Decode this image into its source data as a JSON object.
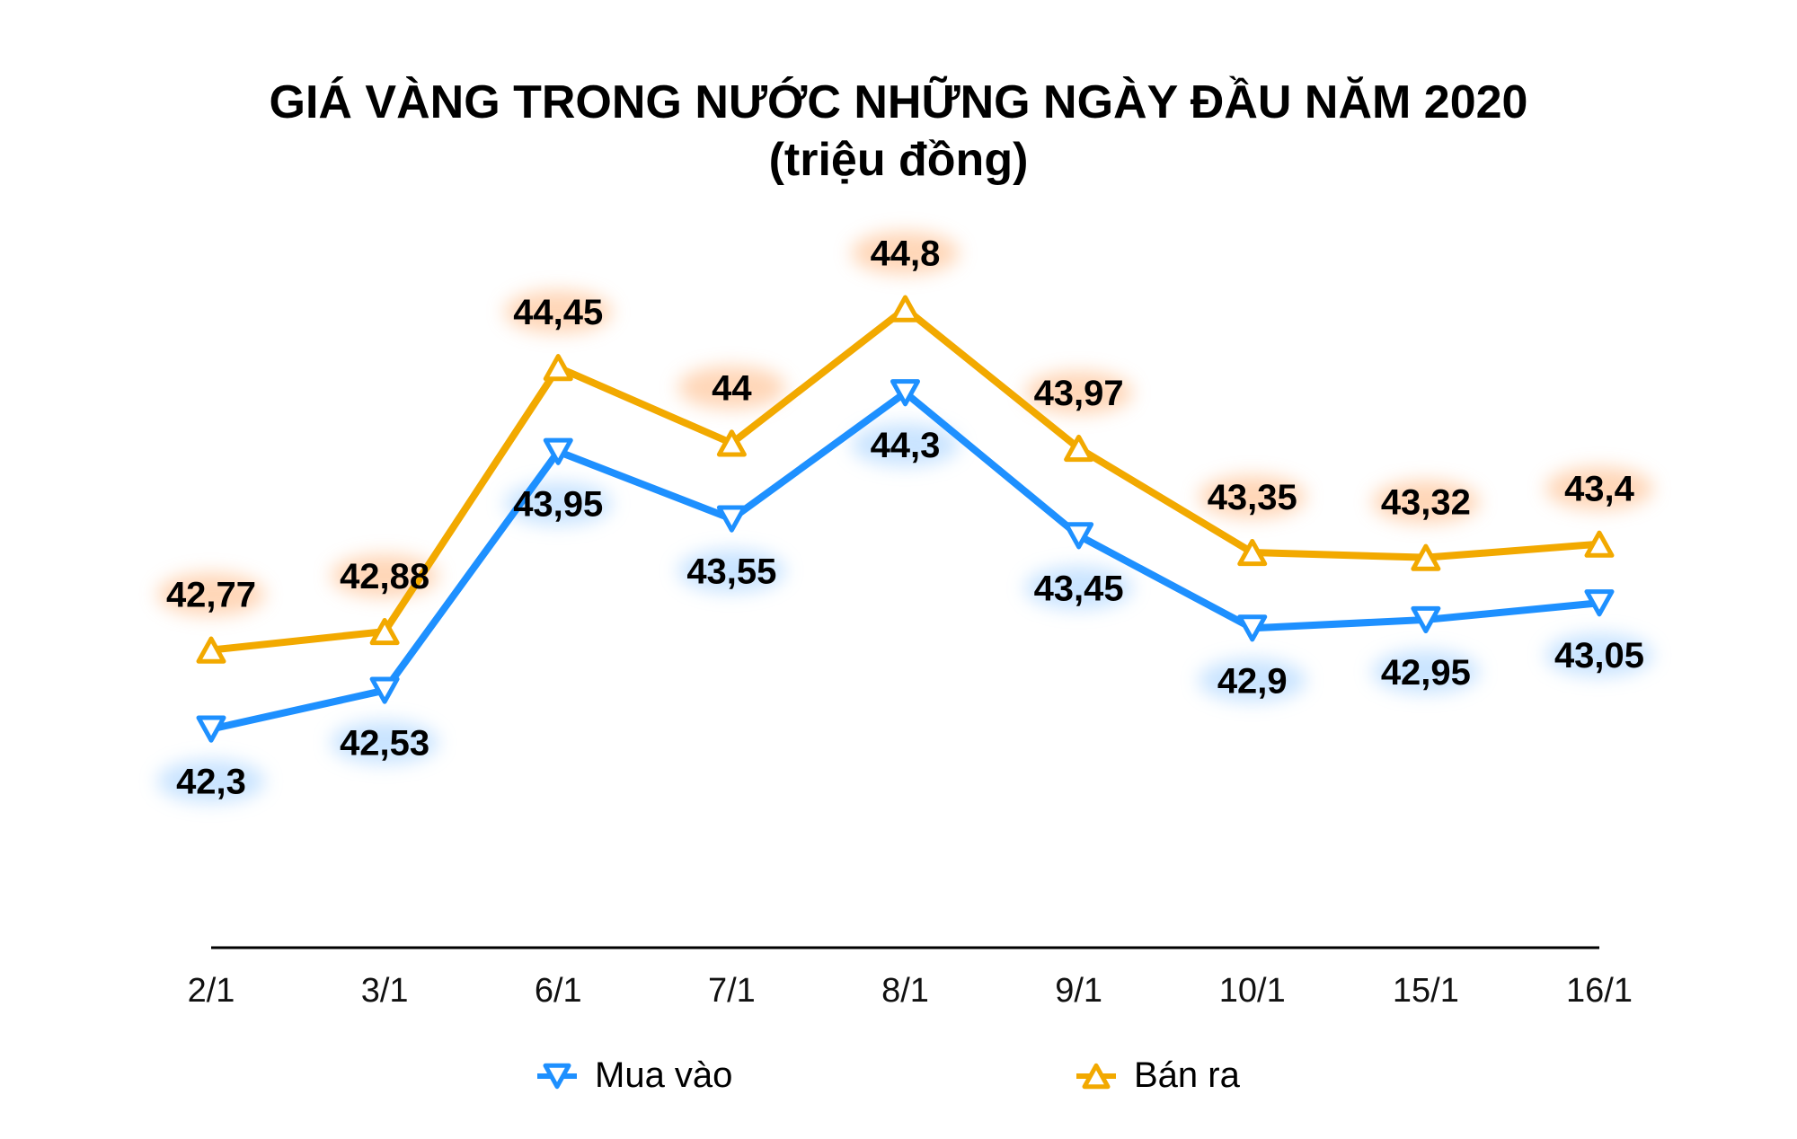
{
  "chart_data": {
    "type": "line",
    "title": "GIÁ VÀNG TRONG NƯỚC NHỮNG NGÀY ĐẦU NĂM 2020",
    "subtitle": "(triệu đồng)",
    "xlabel": "",
    "ylabel": "",
    "categories": [
      "2/1",
      "3/1",
      "6/1",
      "7/1",
      "8/1",
      "9/1",
      "10/1",
      "15/1",
      "16/1"
    ],
    "series": [
      {
        "name": "Mua vào",
        "color": "#1E90FF",
        "marker": "triangle-down",
        "values": [
          42.3,
          42.53,
          43.95,
          43.55,
          44.3,
          43.45,
          42.9,
          42.95,
          43.05
        ],
        "labels": [
          "42,3",
          "42,53",
          "43,95",
          "43,55",
          "44,3",
          "43,45",
          "42,9",
          "42,95",
          "43,05"
        ]
      },
      {
        "name": "Bán ra",
        "color": "#F2A900",
        "marker": "triangle-up",
        "values": [
          42.77,
          42.88,
          44.45,
          44.0,
          44.8,
          43.97,
          43.35,
          43.32,
          43.4
        ],
        "labels": [
          "42,77",
          "42,88",
          "44,45",
          "44",
          "44,8",
          "43,97",
          "43,35",
          "43,32",
          "43,4"
        ]
      }
    ],
    "ylim": [
      41.0,
      45.3
    ],
    "grid": false,
    "legend_position": "bottom"
  }
}
